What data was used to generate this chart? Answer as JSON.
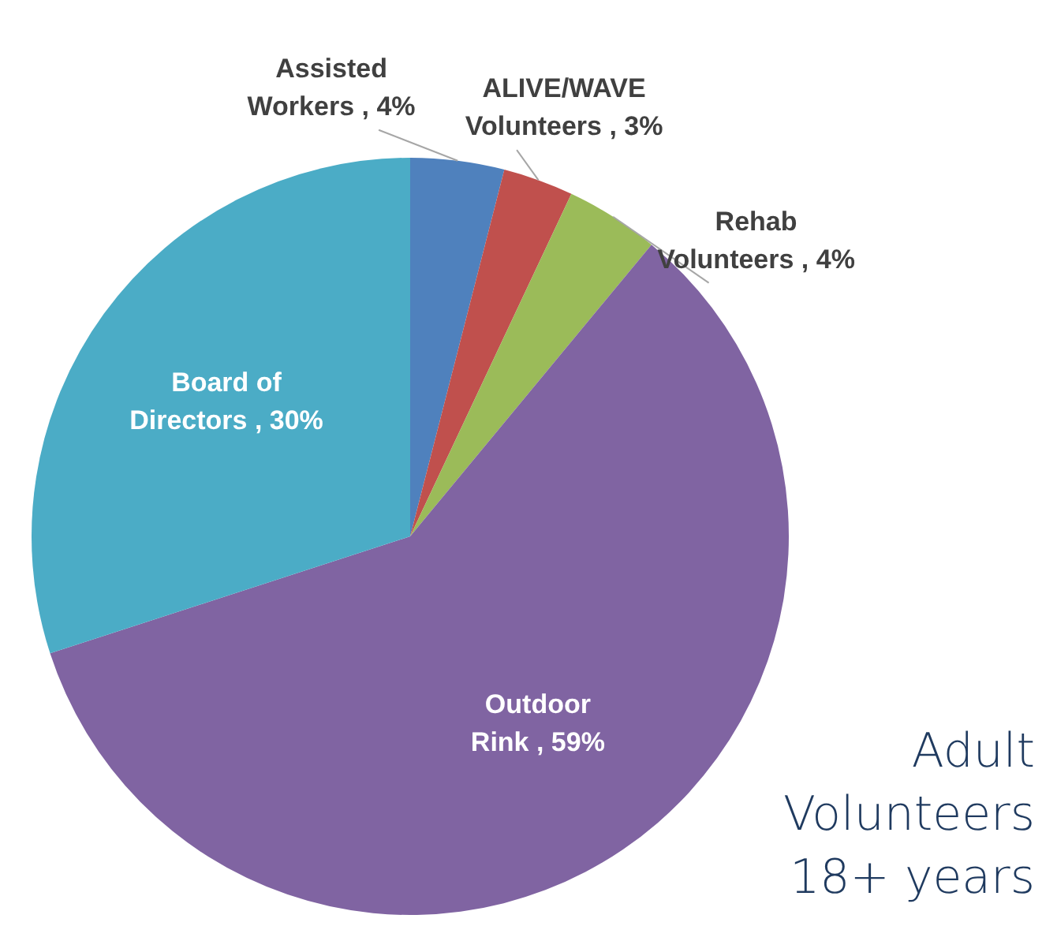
{
  "chart_data": {
    "type": "pie",
    "title": "Adult Volunteers 18+ years",
    "categories": [
      "Assisted Workers",
      "ALIVE/WAVE Volunteers",
      "Rehab Volunteers",
      "Outdoor Rink",
      "Board of Directors"
    ],
    "values": [
      4,
      3,
      4,
      59,
      30
    ],
    "colors": [
      "#4f81bd",
      "#c0504d",
      "#9bbb59",
      "#8064a2",
      "#4bacc6"
    ],
    "value_labels": [
      "4%",
      "3%",
      "4%",
      "59%",
      "30%"
    ],
    "legend": false
  }
}
